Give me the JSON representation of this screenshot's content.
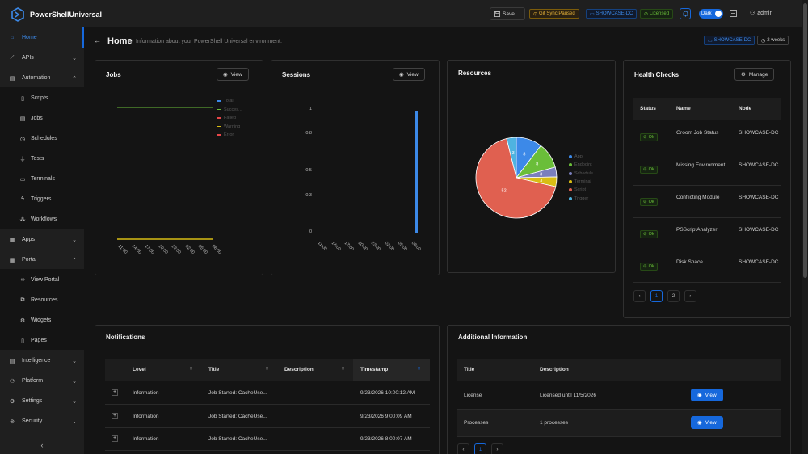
{
  "app": {
    "name": "PowerShellUniversal"
  },
  "topbar": {
    "save_label": "Save",
    "git_sync_label": "Git Sync Paused",
    "computer_label": "SHOWCASE-DC",
    "license_label": "Licensed",
    "theme_label": "Dark",
    "user_label": "admin"
  },
  "sidebar": {
    "items": [
      {
        "label": "Home",
        "icon": "home-icon"
      },
      {
        "label": "APIs",
        "icon": "api-icon"
      },
      {
        "label": "Automation",
        "icon": "automation-icon"
      },
      {
        "label": "Scripts",
        "icon": "script-icon"
      },
      {
        "label": "Jobs",
        "icon": "jobs-icon"
      },
      {
        "label": "Schedules",
        "icon": "clock-icon"
      },
      {
        "label": "Tests",
        "icon": "flask-icon"
      },
      {
        "label": "Terminals",
        "icon": "terminal-icon"
      },
      {
        "label": "Triggers",
        "icon": "bolt-icon"
      },
      {
        "label": "Workflows",
        "icon": "workflow-icon"
      },
      {
        "label": "Apps",
        "icon": "apps-icon"
      },
      {
        "label": "Portal",
        "icon": "portal-icon"
      },
      {
        "label": "View Portal",
        "icon": "link-icon"
      },
      {
        "label": "Resources",
        "icon": "resources-icon"
      },
      {
        "label": "Widgets",
        "icon": "widgets-icon"
      },
      {
        "label": "Pages",
        "icon": "page-icon"
      },
      {
        "label": "Intelligence",
        "icon": "intelligence-icon"
      },
      {
        "label": "Platform",
        "icon": "platform-icon"
      },
      {
        "label": "Settings",
        "icon": "gear-icon"
      },
      {
        "label": "Security",
        "icon": "security-icon"
      }
    ],
    "collapse_icon": "chevron-left-icon"
  },
  "header": {
    "title": "Home",
    "subtitle": "Information about your PowerShell Universal environment.",
    "computer_tag": "SHOWCASE-DC",
    "uptime_tag": "2 weeks"
  },
  "jobs_card": {
    "title": "Jobs",
    "view_label": "View",
    "legend": [
      "Total",
      "Succes...",
      "Failed",
      "Warning",
      "Error"
    ],
    "legend_colors": [
      "#3c89e8",
      "#6abe39",
      "#e84749",
      "#d8bd14",
      "#e84749"
    ],
    "x_ticks": [
      "11:00",
      "14:00",
      "17:00",
      "20:00",
      "23:00",
      "02:00",
      "05:00",
      "08:00"
    ]
  },
  "sessions_card": {
    "title": "Sessions",
    "view_label": "View",
    "y_ticks": [
      "1",
      "0.8",
      "0.5",
      "0.3",
      "0"
    ],
    "x_ticks": [
      "11:00",
      "14:00",
      "17:00",
      "20:00",
      "23:00",
      "02:00",
      "05:00",
      "08:00"
    ]
  },
  "resources_card": {
    "title": "Resources",
    "chart_data": {
      "type": "pie",
      "categories": [
        "App",
        "Endpoint",
        "Schedule",
        "Terminal",
        "Script",
        "Trigger"
      ],
      "values": [
        8,
        8,
        3,
        3,
        52,
        3
      ],
      "labels": [
        "8",
        "8",
        "3",
        "3",
        "52",
        "3"
      ],
      "colors": [
        "#3c89e8",
        "#6abe39",
        "#7a7fbd",
        "#d8bd14",
        "#e06050",
        "#4fb3e0"
      ]
    }
  },
  "health_card": {
    "title": "Health Checks",
    "manage_label": "Manage",
    "columns": [
      "Status",
      "Name",
      "Node"
    ],
    "rows": [
      {
        "status": "Ok",
        "name": "Groom Job Status",
        "node": "SHOWCASE-DC"
      },
      {
        "status": "Ok",
        "name": "Missing Environment",
        "node": "SHOWCASE-DC"
      },
      {
        "status": "Ok",
        "name": "Conflicting Module",
        "node": "SHOWCASE-DC"
      },
      {
        "status": "Ok",
        "name": "PSScriptAnalyzer",
        "node": "SHOWCASE-DC"
      },
      {
        "status": "Ok",
        "name": "Disk Space",
        "node": "SHOWCASE-DC"
      }
    ],
    "pages": [
      "1",
      "2"
    ]
  },
  "notifications_card": {
    "title": "Notifications",
    "columns": [
      "Level",
      "Title",
      "Description",
      "Timestamp"
    ],
    "rows": [
      {
        "level": "Information",
        "title": "Job Started: CacheUse...",
        "description": "",
        "timestamp": "9/23/2026 10:00:12 AM"
      },
      {
        "level": "Information",
        "title": "Job Started: CacheUse...",
        "description": "",
        "timestamp": "9/23/2026 9:00:09 AM"
      },
      {
        "level": "Information",
        "title": "Job Started: CacheUse...",
        "description": "",
        "timestamp": "9/23/2026 8:00:07 AM"
      }
    ]
  },
  "additional_card": {
    "title": "Additional Information",
    "columns": [
      "Title",
      "Description"
    ],
    "rows": [
      {
        "title": "License",
        "description": "Licensed until 11/5/2026",
        "button": "View"
      },
      {
        "title": "Processes",
        "description": "1 processes",
        "button": "View"
      }
    ],
    "pages": [
      "1"
    ]
  }
}
